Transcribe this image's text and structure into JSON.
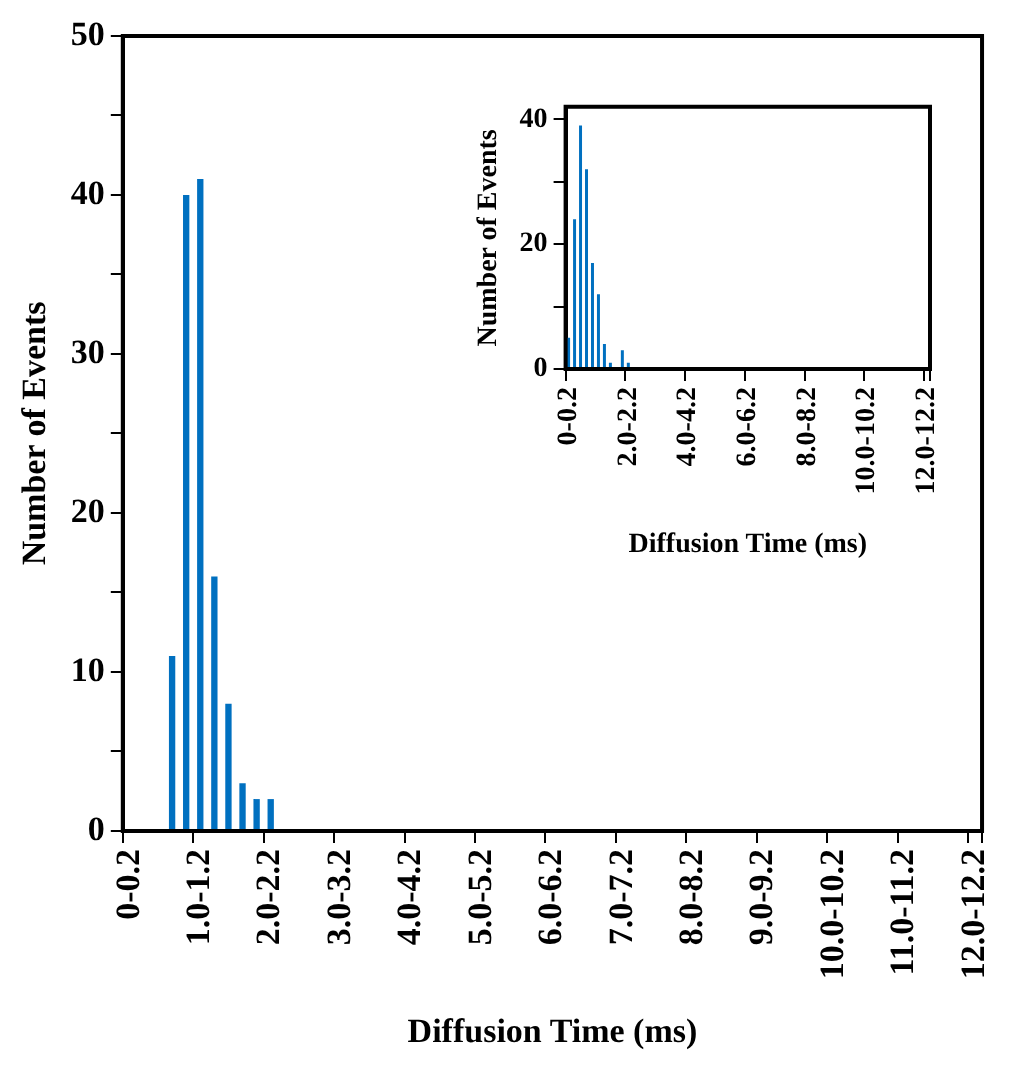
{
  "chart_data": [
    {
      "type": "bar",
      "xlabel": "Diffusion Time (ms)",
      "ylabel": "Number of Events",
      "categories": [
        "0-0.2",
        null,
        null,
        null,
        null,
        "1.0-1.2",
        null,
        null,
        null,
        null,
        "2.0-2.2",
        null,
        null,
        null,
        null,
        "3.0-3.2",
        null,
        null,
        null,
        null,
        "4.0-4.2",
        null,
        null,
        null,
        null,
        "5.0-5.2",
        null,
        null,
        null,
        null,
        "6.0-6.2",
        null,
        null,
        null,
        null,
        "7.0-7.2",
        null,
        null,
        null,
        null,
        "8.0-8.2",
        null,
        null,
        null,
        null,
        "9.0-9.2",
        null,
        null,
        null,
        null,
        "10.0-10.2",
        null,
        null,
        null,
        null,
        "11.0-11.2",
        null,
        null,
        null,
        null,
        "12.0-12.2"
      ],
      "values": [
        0,
        0,
        0,
        11,
        40,
        41,
        16,
        8,
        3,
        2,
        2,
        0,
        0,
        0,
        0,
        0,
        0,
        0,
        0,
        0,
        0,
        0,
        0,
        0,
        0,
        0,
        0,
        0,
        0,
        0,
        0,
        0,
        0,
        0,
        0,
        0,
        0,
        0,
        0,
        0,
        0,
        0,
        0,
        0,
        0,
        0,
        0,
        0,
        0,
        0,
        0,
        0,
        0,
        0,
        0,
        0,
        0,
        0,
        0,
        0,
        0
      ],
      "color": "#0070c0",
      "ylim": [
        0,
        50
      ],
      "yticks": [
        0,
        {
          "value": 5,
          "label": null
        },
        10,
        {
          "value": 15,
          "label": null
        },
        20,
        {
          "value": 25,
          "label": null
        },
        30,
        {
          "value": 35,
          "label": null
        },
        40,
        {
          "value": 45,
          "label": null
        },
        50
      ],
      "grid": false,
      "legend": false
    },
    {
      "type": "bar",
      "xlabel": "Diffusion Time (ms)",
      "ylabel": "Number of Events",
      "categories": [
        "0-0.2",
        null,
        null,
        null,
        null,
        null,
        null,
        null,
        null,
        null,
        "2.0-2.2",
        null,
        null,
        null,
        null,
        null,
        null,
        null,
        null,
        null,
        "4.0-4.2",
        null,
        null,
        null,
        null,
        null,
        null,
        null,
        null,
        null,
        "6.0-6.2",
        null,
        null,
        null,
        null,
        null,
        null,
        null,
        null,
        null,
        "8.0-8.2",
        null,
        null,
        null,
        null,
        null,
        null,
        null,
        null,
        null,
        "10.0-10.2",
        null,
        null,
        null,
        null,
        null,
        null,
        null,
        null,
        null,
        "12.0-12.2"
      ],
      "values": [
        5,
        24,
        39,
        32,
        17,
        12,
        4,
        1,
        0,
        3,
        1,
        0,
        0,
        0,
        0,
        0,
        0,
        0,
        0,
        0,
        0,
        0,
        0,
        0,
        0,
        0,
        0,
        0,
        0,
        0,
        0,
        0,
        0,
        0,
        0,
        0,
        0,
        0,
        0,
        0,
        0,
        0,
        0,
        0,
        0,
        0,
        0,
        0,
        0,
        0,
        0,
        0,
        0,
        0,
        0,
        0,
        0,
        0,
        0,
        0,
        0
      ],
      "color": "#0070c0",
      "ylim": [
        0,
        42
      ],
      "yticks": [
        0,
        {
          "value": 10,
          "label": null
        },
        20,
        {
          "value": 30,
          "label": null
        },
        40
      ],
      "grid": false,
      "legend": false
    }
  ]
}
